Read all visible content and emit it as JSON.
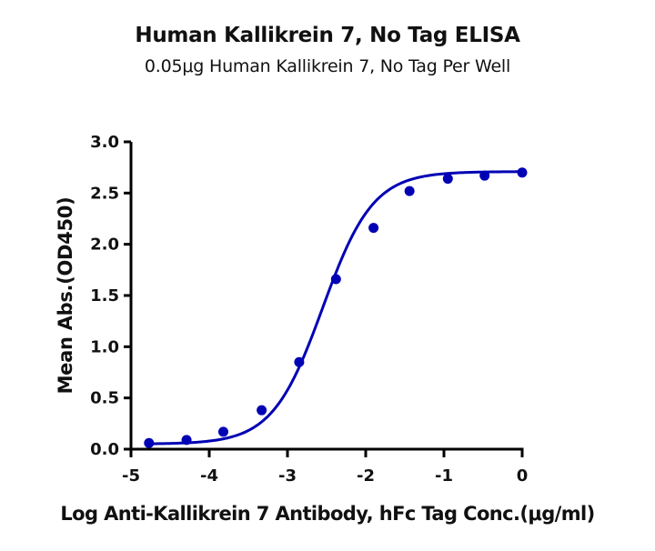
{
  "chart_data": {
    "type": "scatter",
    "title": "Human Kallikrein 7, No Tag ELISA",
    "subtitle": "0.05μg Human Kallikrein 7, No Tag Per Well",
    "xlabel": "Log Anti-Kallikrein 7 Antibody, hFc Tag Conc.(μg/ml)",
    "ylabel": "Mean Abs.(OD450)",
    "xlim": [
      -5,
      0
    ],
    "ylim": [
      0,
      3.0
    ],
    "xticks": [
      "-5",
      "-4",
      "-3",
      "-2",
      "-1",
      "0"
    ],
    "yticks": [
      "0.0",
      "0.5",
      "1.0",
      "1.5",
      "2.0",
      "2.5",
      "3.0"
    ],
    "grid": false,
    "legend": null,
    "series": [
      {
        "name": "Mean Abs.(OD450)",
        "color": "#0000b4",
        "marker": "circle",
        "fit": "4PL sigmoidal curve",
        "x": [
          -4.77,
          -4.29,
          -3.82,
          -3.33,
          -2.85,
          -2.38,
          -1.9,
          -1.44,
          -0.95,
          -0.48,
          0.0
        ],
        "y": [
          0.06,
          0.09,
          0.17,
          0.38,
          0.85,
          1.66,
          2.16,
          2.52,
          2.64,
          2.67,
          2.7
        ]
      }
    ]
  }
}
